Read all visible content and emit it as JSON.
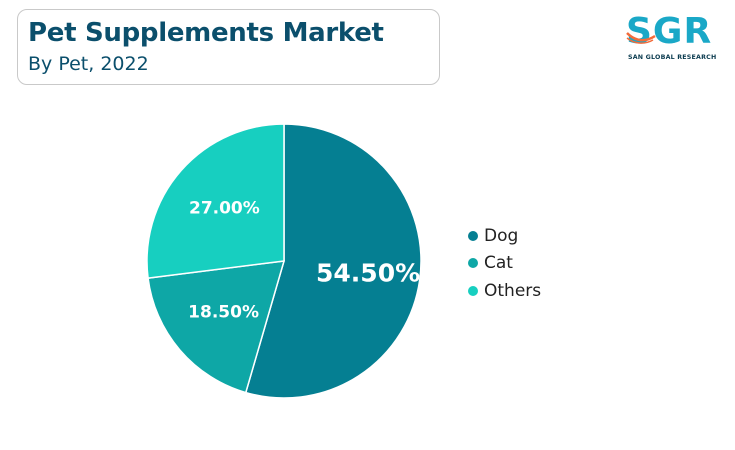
{
  "header": {
    "title": "Pet Supplements Market",
    "subtitle": "By Pet, 2022"
  },
  "logo": {
    "mark": "SGR",
    "name": "SAN GLOBAL RESEARCH",
    "icon": "sgr-logo-icon",
    "colors": {
      "mark": "#1aa8c7",
      "swoosh": "#f26b3a"
    }
  },
  "chart_data": {
    "type": "pie",
    "categories": [
      "Dog",
      "Cat",
      "Others"
    ],
    "values": [
      54.5,
      18.5,
      27.0
    ],
    "labels": [
      "54.50%",
      "18.50%",
      "27.00%"
    ],
    "colors": [
      "#057f92",
      "#0ea7a6",
      "#17cfc0"
    ],
    "title": "Pet Supplements Market",
    "subtitle": "By Pet, 2022",
    "legend": "right"
  }
}
